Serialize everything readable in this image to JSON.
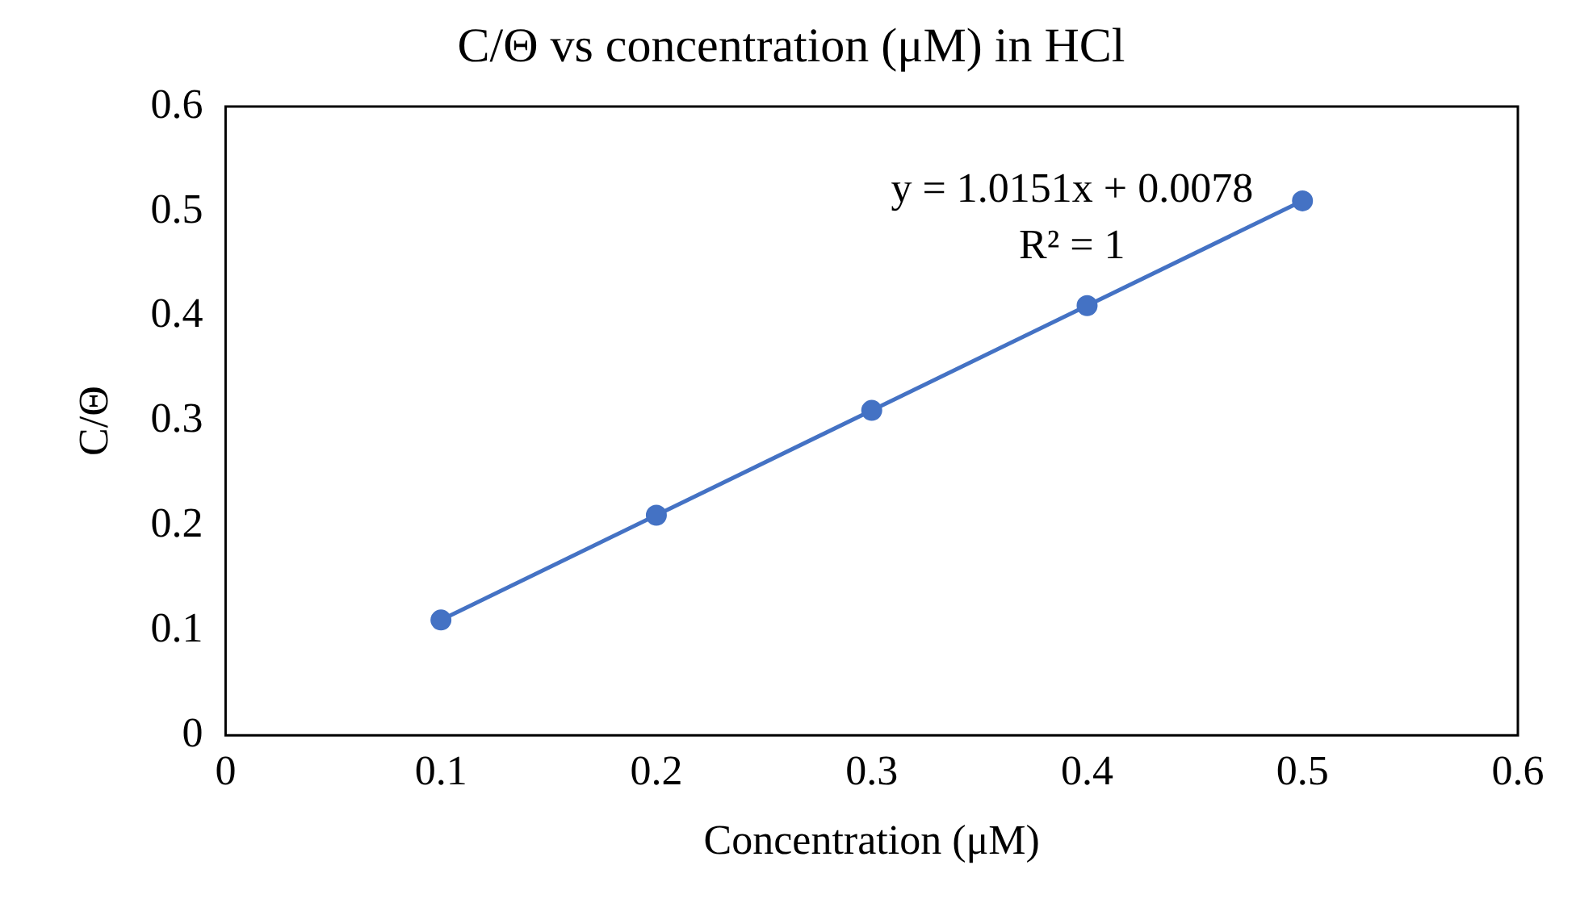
{
  "chart_data": {
    "type": "scatter",
    "title": "C/Θ vs concentration (μM) in HCl",
    "xlabel": "Concentration (μM)",
    "ylabel": "C/Θ",
    "x": [
      0.1,
      0.2,
      0.3,
      0.4,
      0.5
    ],
    "series": [
      {
        "type": "scatter",
        "color": "#4472c4",
        "values": [
          0.11,
          0.21,
          0.31,
          0.41,
          0.51
        ],
        "marker": "circle"
      },
      {
        "type": "line",
        "color": "#4472c4",
        "x": [
          0.1,
          0.5
        ],
        "values": [
          0.11,
          0.51
        ],
        "marker": "none",
        "line_style": "solid"
      }
    ],
    "xlim": [
      0,
      0.6
    ],
    "xticks": [
      0,
      0.1,
      0.2,
      0.3,
      0.4,
      0.5,
      0.6
    ],
    "ylim": [
      0,
      0.6
    ],
    "yticks": [
      0,
      0.1,
      0.2,
      0.3,
      0.4,
      0.5,
      0.6
    ],
    "grid": false,
    "legend": false,
    "annotations": [
      "y = 1.0151x + 0.0078",
      "R² = 1"
    ]
  }
}
